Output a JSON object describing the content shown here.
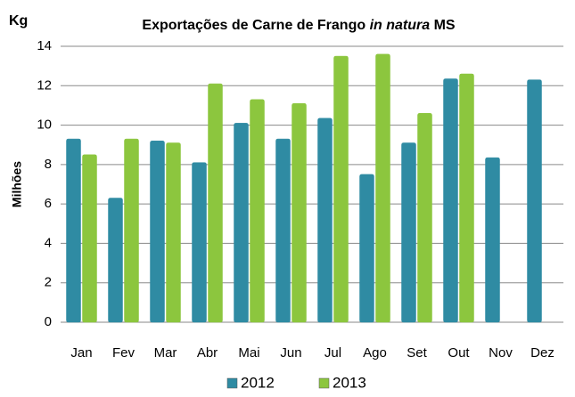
{
  "chart_data": {
    "type": "bar",
    "title_parts": [
      "Exportações de Carne de Frango ",
      "in natura",
      " MS"
    ],
    "unit_label": "Kg",
    "y_label": "Milhões",
    "categories": [
      "Jan",
      "Fev",
      "Mar",
      "Abr",
      "Mai",
      "Jun",
      "Jul",
      "Ago",
      "Set",
      "Out",
      "Nov",
      "Dez"
    ],
    "series": [
      {
        "name": "2012",
        "color": "#2f8ba3",
        "values": [
          9.3,
          6.3,
          9.2,
          8.1,
          10.1,
          9.3,
          10.35,
          7.5,
          9.1,
          12.35,
          8.35,
          12.3
        ]
      },
      {
        "name": "2013",
        "color": "#8cc63e",
        "values": [
          8.5,
          9.3,
          9.1,
          12.1,
          11.3,
          11.1,
          13.5,
          13.6,
          10.6,
          12.6,
          null,
          null
        ]
      }
    ],
    "ylim": [
      0,
      14
    ],
    "yticks": [
      0,
      2,
      4,
      6,
      8,
      10,
      12,
      14
    ],
    "grid": true,
    "legend": "bottom"
  }
}
